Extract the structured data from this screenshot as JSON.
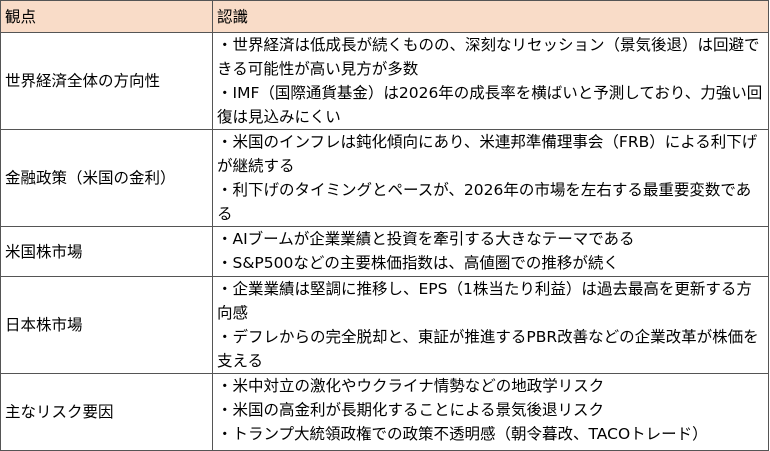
{
  "table": {
    "header": [
      "観点",
      "認識"
    ],
    "rows": [
      [
        "世界経済全体の方向性",
        [
          "・世界経済は低成長が続くものの、深刻なリセッション（景気後退）は回避できる可能性が高い見方が多数",
          "・IMF（国際通貨基金）は2026年の成長率を横ばいと予測しており、力強い回復は見込みにくい"
        ]
      ],
      [
        "金融政策（米国の金利）",
        [
          "・米国のインフレは鈍化傾向にあり、米連邦準備理事会（FRB）による利下げが継続する",
          "・利下げのタイミングとペースが、2026年の市場を左右する最重要変数である"
        ]
      ],
      [
        "米国株市場",
        [
          "・AIブームが企業業績と投資を牽引する大きなテーマである",
          "・S&P500などの主要株価指数は、高値圏での推移が続く"
        ]
      ],
      [
        "日本株市場",
        [
          "・企業業績は堅調に推移し、EPS（1株当たり利益）は過去最高を更新する方向感",
          "・デフレからの完全脱却と、東証が推進するPBR改善などの企業改革が株価を支える"
        ]
      ],
      [
        "主なリスク要因",
        [
          "・米中対立の激化やウクライナ情勢などの地政学リスク",
          "・米国の高金利が長期化することによる景気後退リスク",
          "・トランプ大統領政権での政策不透明感（朝令暮改、TACOトレード）"
        ]
      ]
    ]
  }
}
